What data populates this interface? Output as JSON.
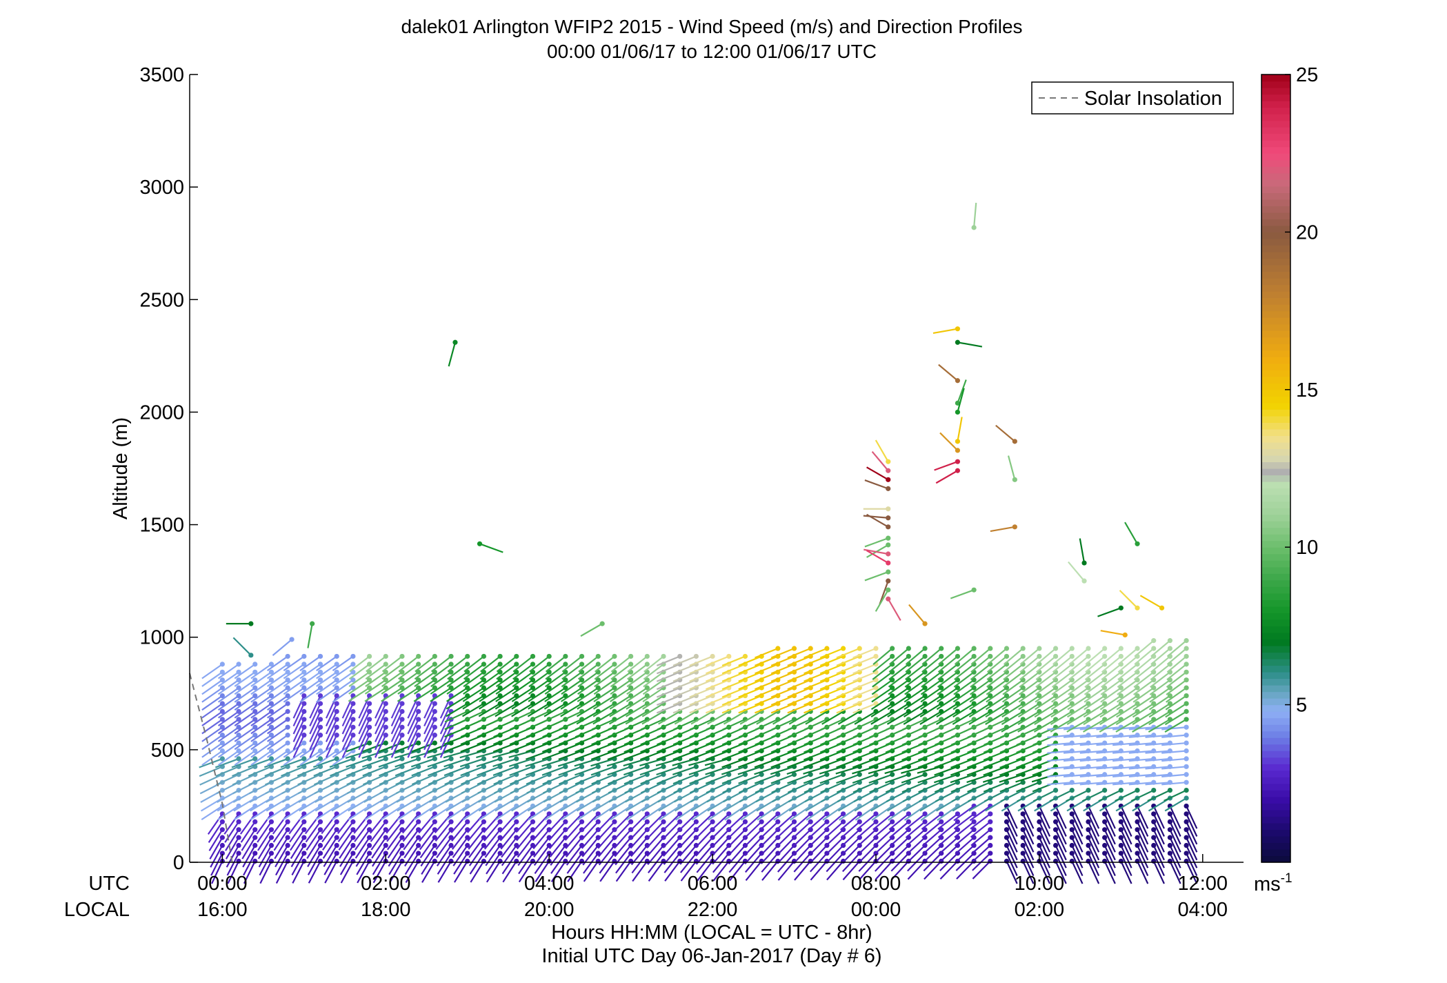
{
  "chart_data": {
    "type": "scatter",
    "title": "dalek01 Arlington WFIP2 2015 - Wind Speed (m/s) and Direction Profiles",
    "subtitle": "00:00 01/06/17 to 12:00 01/06/17  UTC",
    "ylabel": "Altitude (m)",
    "xlabel": "Hours HH:MM  (LOCAL = UTC - 8hr)",
    "xlabel2": "Initial UTC Day 06-Jan-2017 (Day # 6)",
    "ylim": [
      0,
      3500
    ],
    "xlim_hours": [
      -0.4,
      12.5
    ],
    "yticks": [
      0,
      500,
      1000,
      1500,
      2000,
      2500,
      3000,
      3500
    ],
    "xtick_hours": [
      0,
      2,
      4,
      6,
      8,
      10,
      12
    ],
    "utc_row_label": "UTC",
    "local_row_label": "LOCAL",
    "utc_ticks": [
      "00:00",
      "02:00",
      "04:00",
      "06:00",
      "08:00",
      "10:00",
      "12:00"
    ],
    "local_ticks": [
      "16:00",
      "18:00",
      "20:00",
      "22:00",
      "00:00",
      "02:00",
      "04:00"
    ],
    "legend": {
      "entries": [
        "Solar Insolation"
      ],
      "placement": "top-right",
      "style": "dashed-gray"
    },
    "colorbar": {
      "range": [
        0,
        25
      ],
      "ticks": [
        "5",
        "10",
        "15",
        "20",
        "25"
      ],
      "tick_values": [
        5,
        10,
        15,
        20,
        25
      ],
      "unit_label": "ms",
      "unit_exponent": "-1"
    },
    "solar_insolation_line": [
      [
        -0.4,
        840
      ],
      [
        -0.2,
        560
      ],
      [
        0,
        260
      ],
      [
        0.12,
        0
      ]
    ],
    "profile_interval_hours": 0.2,
    "profile_start_hours": 0.0,
    "profile_end_hours": 11.8,
    "gate_spacing_m": 35,
    "scattered_points": [
      {
        "h": 0.35,
        "alt": 1060,
        "ws": 7,
        "dir": 270
      },
      {
        "h": 0.35,
        "alt": 920,
        "ws": 6,
        "dir": 315
      },
      {
        "h": 0.85,
        "alt": 990,
        "ws": 4.5,
        "dir": 230
      },
      {
        "h": 1.1,
        "alt": 1060,
        "ws": 9,
        "dir": 190
      },
      {
        "h": 2.85,
        "alt": 2310,
        "ws": 7.5,
        "dir": 195
      },
      {
        "h": 3.15,
        "alt": 1415,
        "ws": 8,
        "dir": 110
      },
      {
        "h": 4.65,
        "alt": 1060,
        "ws": 10,
        "dir": 240
      },
      {
        "h": 8.15,
        "alt": 1780,
        "ws": 14,
        "dir": 330
      },
      {
        "h": 8.15,
        "alt": 1740,
        "ws": 22,
        "dir": 320
      },
      {
        "h": 8.15,
        "alt": 1700,
        "ws": 25,
        "dir": 300
      },
      {
        "h": 8.15,
        "alt": 1660,
        "ws": 20,
        "dir": 290
      },
      {
        "h": 8.15,
        "alt": 1570,
        "ws": 13,
        "dir": 270
      },
      {
        "h": 8.15,
        "alt": 1530,
        "ws": 20,
        "dir": 275
      },
      {
        "h": 8.15,
        "alt": 1490,
        "ws": 20,
        "dir": 300
      },
      {
        "h": 8.15,
        "alt": 1440,
        "ws": 10,
        "dir": 250
      },
      {
        "h": 8.15,
        "alt": 1410,
        "ws": 10,
        "dir": 240
      },
      {
        "h": 8.15,
        "alt": 1370,
        "ws": 22,
        "dir": 280
      },
      {
        "h": 8.15,
        "alt": 1330,
        "ws": 23,
        "dir": 300
      },
      {
        "h": 8.15,
        "alt": 1290,
        "ws": 10,
        "dir": 250
      },
      {
        "h": 8.15,
        "alt": 1250,
        "ws": 20,
        "dir": 200
      },
      {
        "h": 8.15,
        "alt": 1210,
        "ws": 10,
        "dir": 210
      },
      {
        "h": 8.15,
        "alt": 1170,
        "ws": 22,
        "dir": 150
      },
      {
        "h": 8.6,
        "alt": 1060,
        "ws": 17,
        "dir": 320
      },
      {
        "h": 9.0,
        "alt": 2370,
        "ws": 15,
        "dir": 260
      },
      {
        "h": 9.0,
        "alt": 2310,
        "ws": 7,
        "dir": 100
      },
      {
        "h": 9.0,
        "alt": 2140,
        "ws": 19,
        "dir": 310
      },
      {
        "h": 9.0,
        "alt": 2040,
        "ws": 9,
        "dir": 20
      },
      {
        "h": 9.0,
        "alt": 2000,
        "ws": 8,
        "dir": 15
      },
      {
        "h": 9.0,
        "alt": 1870,
        "ws": 15,
        "dir": 10
      },
      {
        "h": 9.0,
        "alt": 1830,
        "ws": 17,
        "dir": 315
      },
      {
        "h": 9.0,
        "alt": 1780,
        "ws": 24,
        "dir": 250
      },
      {
        "h": 9.0,
        "alt": 1740,
        "ws": 24,
        "dir": 240
      },
      {
        "h": 9.2,
        "alt": 2820,
        "ws": 11,
        "dir": 5
      },
      {
        "h": 9.2,
        "alt": 1210,
        "ws": 10,
        "dir": 250
      },
      {
        "h": 9.7,
        "alt": 1870,
        "ws": 19,
        "dir": 310
      },
      {
        "h": 9.7,
        "alt": 1700,
        "ws": 10.5,
        "dir": 345
      },
      {
        "h": 9.7,
        "alt": 1490,
        "ws": 18,
        "dir": 260
      },
      {
        "h": 10.55,
        "alt": 1330,
        "ws": 7,
        "dir": 350
      },
      {
        "h": 10.55,
        "alt": 1250,
        "ws": 12,
        "dir": 320
      },
      {
        "h": 11.0,
        "alt": 1130,
        "ws": 7,
        "dir": 250
      },
      {
        "h": 11.05,
        "alt": 1010,
        "ws": 16,
        "dir": 280
      },
      {
        "h": 11.2,
        "alt": 1415,
        "ws": 8.5,
        "dir": 330
      },
      {
        "h": 11.2,
        "alt": 1130,
        "ws": 14,
        "dir": 315
      },
      {
        "h": 11.5,
        "alt": 1130,
        "ws": 15,
        "dir": 300
      }
    ]
  }
}
